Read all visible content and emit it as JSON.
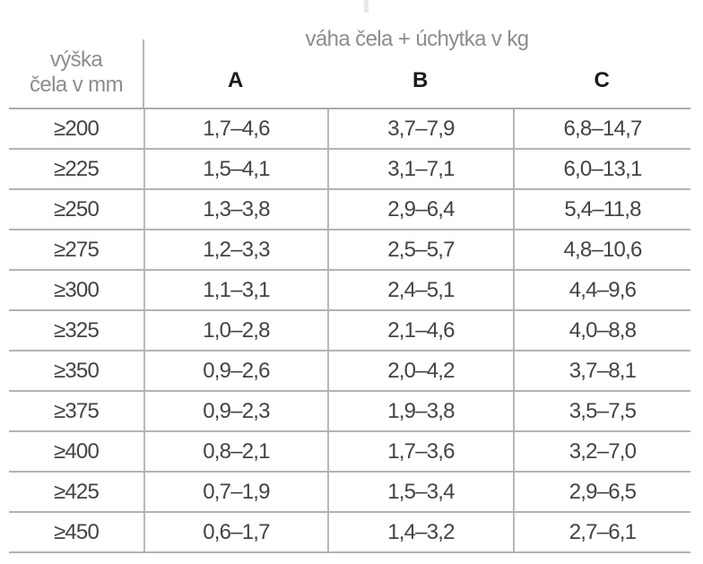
{
  "table": {
    "corner_header": {
      "line1": "výška",
      "line2": "čela v mm"
    },
    "group_header": "váha čela + úchytka v kg",
    "columns": [
      "A",
      "B",
      "C"
    ],
    "rows": [
      {
        "label": "≥200",
        "values": [
          "1,7–4,6",
          "3,7–7,9",
          "6,8–14,7"
        ]
      },
      {
        "label": "≥225",
        "values": [
          "1,5–4,1",
          "3,1–7,1",
          "6,0–13,1"
        ]
      },
      {
        "label": "≥250",
        "values": [
          "1,3–3,8",
          "2,9–6,4",
          "5,4–11,8"
        ]
      },
      {
        "label": "≥275",
        "values": [
          "1,2–3,3",
          "2,5–5,7",
          "4,8–10,6"
        ]
      },
      {
        "label": "≥300",
        "values": [
          "1,1–3,1",
          "2,4–5,1",
          "4,4–9,6"
        ]
      },
      {
        "label": "≥325",
        "values": [
          "1,0–2,8",
          "2,1–4,6",
          "4,0–8,8"
        ]
      },
      {
        "label": "≥350",
        "values": [
          "0,9–2,6",
          "2,0–4,2",
          "3,7–8,1"
        ]
      },
      {
        "label": "≥375",
        "values": [
          "0,9–2,3",
          "1,9–3,8",
          "3,5–7,5"
        ]
      },
      {
        "label": "≥400",
        "values": [
          "0,8–2,1",
          "1,7–3,6",
          "3,2–7,0"
        ]
      },
      {
        "label": "≥425",
        "values": [
          "0,7–1,9",
          "1,5–3,4",
          "2,9–6,5"
        ]
      },
      {
        "label": "≥450",
        "values": [
          "0,6–1,7",
          "1,4–3,2",
          "2,7–6,1"
        ]
      }
    ],
    "colors": {
      "header_text": "#8d8d8d",
      "column_letter_text": "#1b1b1b",
      "data_text": "#434343",
      "grid_line": "#b3b3b3"
    }
  }
}
